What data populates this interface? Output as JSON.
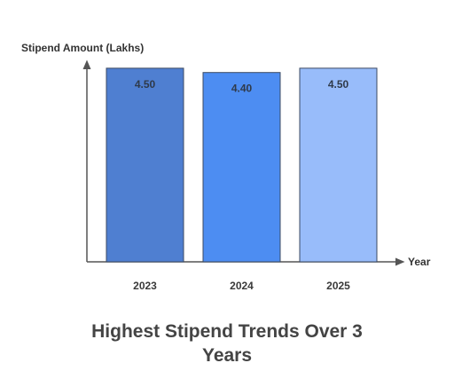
{
  "chart_data": {
    "type": "bar",
    "title": "Highest Stipend Trends Over 3 Years",
    "ylabel": "Stipend Amount (Lakhs)",
    "xlabel": "Year",
    "categories": [
      "2023",
      "2024",
      "2025"
    ],
    "values": [
      4.5,
      4.4,
      4.5
    ],
    "data_labels": [
      "4.50",
      "4.40",
      "4.50"
    ],
    "colors": [
      "#4f7fd1",
      "#4d8df2",
      "#98bcfa"
    ],
    "ylim": [
      0,
      4.6
    ],
    "grid": false,
    "legend": "none"
  }
}
